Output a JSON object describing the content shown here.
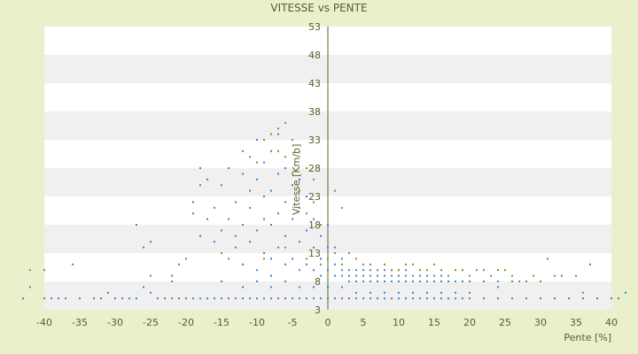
{
  "chart_data": {
    "type": "scatter",
    "title": "VITESSE vs PENTE",
    "xlabel": "Pente [%]",
    "ylabel": "Vitesse [Km/h]",
    "xlim": [
      -40,
      40
    ],
    "ylim": [
      3,
      53
    ],
    "x_ticks": [
      -40,
      -35,
      -30,
      -25,
      -20,
      -15,
      -10,
      -5,
      0,
      5,
      10,
      15,
      20,
      25,
      30,
      35,
      40
    ],
    "y_ticks": [
      3,
      8,
      13,
      18,
      23,
      28,
      33,
      38,
      43,
      48,
      53
    ],
    "background_bands": "alternating white and light grey",
    "grid": false,
    "colors": {
      "blue_points": "#3a86c8",
      "olive_points": "#8a8f28",
      "band_light": "#ffffff",
      "band_grey": "#f0f0f0",
      "page_bg": "#eaf0cc",
      "axis_line": "#5a6a2a"
    },
    "series": [
      {
        "color": "blue",
        "points": [
          [
            -43,
            5
          ],
          [
            -42,
            7
          ],
          [
            -40,
            5
          ],
          [
            -39,
            5
          ],
          [
            -38,
            5
          ],
          [
            -37,
            5
          ],
          [
            -35,
            5
          ],
          [
            -33,
            5
          ],
          [
            -32,
            5
          ],
          [
            -31,
            6
          ],
          [
            -30,
            5
          ],
          [
            -29,
            5
          ],
          [
            -28,
            5
          ],
          [
            -27,
            5
          ],
          [
            -26,
            7
          ],
          [
            -25,
            6
          ],
          [
            -24,
            5
          ],
          [
            -23,
            5
          ],
          [
            -22,
            5
          ],
          [
            -21,
            5
          ],
          [
            -20,
            5
          ],
          [
            -19,
            5
          ],
          [
            -18,
            5
          ],
          [
            -17,
            5
          ],
          [
            -16,
            5
          ],
          [
            -15,
            5
          ],
          [
            -14,
            5
          ],
          [
            -13,
            5
          ],
          [
            -12,
            5
          ],
          [
            -11,
            5
          ],
          [
            -10,
            5
          ],
          [
            -9,
            5
          ],
          [
            -8,
            5
          ],
          [
            -7,
            5
          ],
          [
            -6,
            5
          ],
          [
            -5,
            5
          ],
          [
            -4,
            5
          ],
          [
            -3,
            5
          ],
          [
            -2,
            5
          ],
          [
            -1,
            5
          ],
          [
            0,
            5
          ],
          [
            1,
            5
          ],
          [
            2,
            5
          ],
          [
            3,
            5
          ],
          [
            4,
            5
          ],
          [
            5,
            5
          ],
          [
            6,
            5
          ],
          [
            7,
            5
          ],
          [
            8,
            5
          ],
          [
            9,
            5
          ],
          [
            10,
            5
          ],
          [
            11,
            5
          ],
          [
            12,
            5
          ],
          [
            13,
            5
          ],
          [
            14,
            5
          ],
          [
            15,
            5
          ],
          [
            16,
            5
          ],
          [
            17,
            5
          ],
          [
            18,
            5
          ],
          [
            19,
            5
          ],
          [
            20,
            5
          ],
          [
            22,
            5
          ],
          [
            24,
            5
          ],
          [
            26,
            5
          ],
          [
            28,
            5
          ],
          [
            30,
            5
          ],
          [
            32,
            5
          ],
          [
            34,
            5
          ],
          [
            36,
            5
          ],
          [
            38,
            5
          ],
          [
            40,
            5
          ],
          [
            41,
            5
          ],
          [
            42,
            6
          ],
          [
            -40,
            10
          ],
          [
            -36,
            11
          ],
          [
            -27,
            18
          ],
          [
            -26,
            14
          ],
          [
            -25,
            15
          ],
          [
            -20,
            12
          ],
          [
            -19,
            20
          ],
          [
            -19,
            22
          ],
          [
            -18,
            16
          ],
          [
            -18,
            28
          ],
          [
            -17,
            26
          ],
          [
            -17,
            19
          ],
          [
            -16,
            21
          ],
          [
            -15,
            17
          ],
          [
            -15,
            25
          ],
          [
            -14,
            19
          ],
          [
            -14,
            28
          ],
          [
            -13,
            14
          ],
          [
            -13,
            22
          ],
          [
            -12,
            18
          ],
          [
            -12,
            27
          ],
          [
            -12,
            31
          ],
          [
            -11,
            15
          ],
          [
            -11,
            21
          ],
          [
            -11,
            24
          ],
          [
            -10,
            17
          ],
          [
            -10,
            26
          ],
          [
            -10,
            33
          ],
          [
            -9,
            13
          ],
          [
            -9,
            19
          ],
          [
            -9,
            23
          ],
          [
            -9,
            29
          ],
          [
            -8,
            12
          ],
          [
            -8,
            18
          ],
          [
            -8,
            24
          ],
          [
            -8,
            31
          ],
          [
            -7,
            14
          ],
          [
            -7,
            20
          ],
          [
            -7,
            27
          ],
          [
            -7,
            34
          ],
          [
            -6,
            11
          ],
          [
            -6,
            16
          ],
          [
            -6,
            22
          ],
          [
            -6,
            28
          ],
          [
            -5,
            12
          ],
          [
            -5,
            19
          ],
          [
            -5,
            25
          ],
          [
            -5,
            33
          ],
          [
            -4,
            10
          ],
          [
            -4,
            15
          ],
          [
            -4,
            21
          ],
          [
            -4,
            26
          ],
          [
            -3,
            11
          ],
          [
            -3,
            17
          ],
          [
            -3,
            23
          ],
          [
            -2,
            10
          ],
          [
            -2,
            14
          ],
          [
            -2,
            19
          ],
          [
            -1,
            9
          ],
          [
            -1,
            12
          ],
          [
            -1,
            16
          ],
          [
            0,
            10
          ],
          [
            0,
            14
          ],
          [
            0,
            18
          ],
          [
            1,
            9
          ],
          [
            1,
            11
          ],
          [
            1,
            14
          ],
          [
            2,
            9
          ],
          [
            2,
            10
          ],
          [
            2,
            12
          ],
          [
            3,
            8
          ],
          [
            3,
            9
          ],
          [
            3,
            10
          ],
          [
            4,
            8
          ],
          [
            4,
            9
          ],
          [
            4,
            10
          ],
          [
            5,
            8
          ],
          [
            5,
            9
          ],
          [
            5,
            10
          ],
          [
            6,
            8
          ],
          [
            6,
            9
          ],
          [
            6,
            10
          ],
          [
            7,
            8
          ],
          [
            7,
            9
          ],
          [
            7,
            10
          ],
          [
            8,
            8
          ],
          [
            8,
            9
          ],
          [
            8,
            10
          ],
          [
            9,
            8
          ],
          [
            9,
            9
          ],
          [
            9,
            10
          ],
          [
            10,
            8
          ],
          [
            10,
            9
          ],
          [
            10,
            10
          ],
          [
            11,
            8
          ],
          [
            11,
            9
          ],
          [
            11,
            10
          ],
          [
            12,
            8
          ],
          [
            12,
            9
          ],
          [
            13,
            8
          ],
          [
            13,
            9
          ],
          [
            14,
            8
          ],
          [
            14,
            9
          ],
          [
            15,
            8
          ],
          [
            15,
            9
          ],
          [
            16,
            8
          ],
          [
            16,
            9
          ],
          [
            17,
            8
          ],
          [
            18,
            8
          ],
          [
            19,
            8
          ],
          [
            20,
            8
          ],
          [
            22,
            8
          ],
          [
            24,
            8
          ],
          [
            26,
            8
          ],
          [
            28,
            8
          ],
          [
            31,
            12
          ],
          [
            33,
            9
          ],
          [
            37,
            11
          ],
          [
            -15,
            8
          ],
          [
            -12,
            7
          ],
          [
            -10,
            8
          ],
          [
            -8,
            7
          ],
          [
            -6,
            8
          ],
          [
            -4,
            7
          ],
          [
            -2,
            7
          ],
          [
            0,
            7
          ],
          [
            2,
            7
          ],
          [
            4,
            6
          ],
          [
            6,
            6
          ],
          [
            8,
            6
          ],
          [
            10,
            6
          ],
          [
            12,
            6
          ],
          [
            14,
            6
          ],
          [
            16,
            6
          ],
          [
            18,
            6
          ],
          [
            20,
            6
          ],
          [
            24,
            7
          ],
          [
            -21,
            11
          ],
          [
            -22,
            9
          ],
          [
            -16,
            15
          ],
          [
            -14,
            12
          ],
          [
            -12,
            11
          ],
          [
            -10,
            10
          ],
          [
            -8,
            9
          ]
        ]
      },
      {
        "color": "olive",
        "points": [
          [
            -42,
            10
          ],
          [
            -25,
            9
          ],
          [
            -22,
            8
          ],
          [
            -18,
            25
          ],
          [
            -12,
            27
          ],
          [
            -11,
            30
          ],
          [
            -10,
            29
          ],
          [
            -9,
            33
          ],
          [
            -8,
            34
          ],
          [
            -7,
            31
          ],
          [
            -7,
            35
          ],
          [
            -6,
            30
          ],
          [
            -6,
            36
          ],
          [
            -5,
            33
          ],
          [
            -5,
            27
          ],
          [
            -4,
            31
          ],
          [
            -4,
            24
          ],
          [
            -3,
            20
          ],
          [
            -3,
            28
          ],
          [
            -2,
            22
          ],
          [
            -2,
            26
          ],
          [
            -1,
            18
          ],
          [
            1,
            24
          ],
          [
            2,
            21
          ],
          [
            3,
            13
          ],
          [
            4,
            12
          ],
          [
            5,
            11
          ],
          [
            6,
            11
          ],
          [
            7,
            10
          ],
          [
            8,
            11
          ],
          [
            9,
            10
          ],
          [
            10,
            10
          ],
          [
            12,
            11
          ],
          [
            13,
            10
          ],
          [
            14,
            10
          ],
          [
            15,
            11
          ],
          [
            16,
            10
          ],
          [
            17,
            9
          ],
          [
            18,
            10
          ],
          [
            19,
            10
          ],
          [
            20,
            9
          ],
          [
            22,
            10
          ],
          [
            23,
            9
          ],
          [
            24,
            10
          ],
          [
            25,
            10
          ],
          [
            26,
            9
          ],
          [
            27,
            8
          ],
          [
            29,
            9
          ],
          [
            30,
            8
          ],
          [
            32,
            9
          ],
          [
            35,
            9
          ],
          [
            -15,
            13
          ],
          [
            -13,
            16
          ],
          [
            -9,
            12
          ],
          [
            -6,
            14
          ],
          [
            -3,
            12
          ],
          [
            -1,
            11
          ],
          [
            0,
            12
          ],
          [
            1,
            13
          ],
          [
            2,
            11
          ],
          [
            11,
            11
          ],
          [
            21,
            10
          ],
          [
            36,
            6
          ]
        ]
      }
    ]
  }
}
